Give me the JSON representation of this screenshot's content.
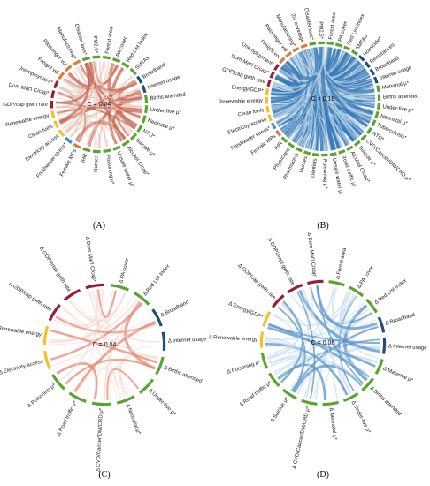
{
  "panels": [
    {
      "id": "A",
      "panel_label": "(A)",
      "center_text": "C = 0.04",
      "link_color": "#c76a55",
      "link_color_light": "#e8c3b8",
      "nodes": [
        {
          "label": "Forest area",
          "color": "#5aa52f"
        },
        {
          "label": "PA cover",
          "color": "#5aa52f"
        },
        {
          "label": "Red List Index",
          "color": "#5aa52f"
        },
        {
          "label": "SMTAs",
          "color": "#5aa52f"
        },
        {
          "label": "Broadband",
          "color": "#1f4e79"
        },
        {
          "label": "Internet usage",
          "color": "#1f4e79"
        },
        {
          "label": "Births attended",
          "color": "#5aa52f"
        },
        {
          "label": "Under-five μ*",
          "color": "#5aa52f"
        },
        {
          "label": "Neonatal μ*",
          "color": "#5aa52f"
        },
        {
          "label": "NTD*",
          "color": "#5aa52f"
        },
        {
          "label": "Suicide μ*",
          "color": "#5aa52f"
        },
        {
          "label": "Alcohol C/cap*",
          "color": "#5aa52f"
        },
        {
          "label": "Unsafe water μ*",
          "color": "#5aa52f"
        },
        {
          "label": "Poisoning μ*",
          "color": "#5aa52f"
        },
        {
          "label": "Nurses",
          "color": "#5aa52f"
        },
        {
          "label": "IHR",
          "color": "#5aa52f"
        },
        {
          "label": "Female MPs",
          "color": "#e07b39"
        },
        {
          "label": "Freshwater stress*",
          "color": "#3b8fc9"
        },
        {
          "label": "Electricity access",
          "color": "#f2c12e"
        },
        {
          "label": "Clean fuels",
          "color": "#f2c12e"
        },
        {
          "label": "Renewable energy",
          "color": "#f2c12e"
        },
        {
          "label": "GDP/cap gwth rate",
          "color": "#9c1c3c"
        },
        {
          "label": "Dom Mat'l C/cap*",
          "color": "#9c1c3c"
        },
        {
          "label": "Unemployment*",
          "color": "#9c1c3c"
        },
        {
          "label": "Freight vol",
          "color": "#e07b39"
        },
        {
          "label": "Passenger vol",
          "color": "#e07b39"
        },
        {
          "label": "Manufacturing*",
          "color": "#e07b39"
        },
        {
          "label": "Disaster loss*",
          "color": "#5aa52f"
        },
        {
          "label": "PM2.5*",
          "color": "#5aa52f"
        }
      ]
    },
    {
      "id": "B",
      "panel_label": "(B)",
      "center_text": "C = 0.18",
      "link_color": "#3a7bb5",
      "link_color_light": "#b9d3ea",
      "nodes": [
        {
          "label": "Forest area",
          "color": "#5aa52f"
        },
        {
          "label": "PA cover",
          "color": "#5aa52f"
        },
        {
          "label": "Red List Index",
          "color": "#5aa52f"
        },
        {
          "label": "SMTAs",
          "color": "#5aa52f"
        },
        {
          "label": "Homicide*",
          "color": "#1f4e79"
        },
        {
          "label": "Remittances",
          "color": "#1f4e79"
        },
        {
          "label": "Broadband",
          "color": "#1f4e79"
        },
        {
          "label": "Internet usage",
          "color": "#1f4e79"
        },
        {
          "label": "Maternal μ*",
          "color": "#5aa52f"
        },
        {
          "label": "Births attended",
          "color": "#5aa52f"
        },
        {
          "label": "Under-five μ*",
          "color": "#5aa52f"
        },
        {
          "label": "Neonatal μ*",
          "color": "#5aa52f"
        },
        {
          "label": "Tuberculosis*",
          "color": "#5aa52f"
        },
        {
          "label": "NTD*",
          "color": "#5aa52f"
        },
        {
          "label": "CVD/Cancer/DM/CRD μ*",
          "color": "#5aa52f"
        },
        {
          "label": "Suicide μ*",
          "color": "#5aa52f"
        },
        {
          "label": "Alcohol C/cap*",
          "color": "#5aa52f"
        },
        {
          "label": "Road traffic μ*",
          "color": "#5aa52f"
        },
        {
          "label": "Unsafe water μ*",
          "color": "#5aa52f"
        },
        {
          "label": "Poisoning μ*",
          "color": "#5aa52f"
        },
        {
          "label": "Dentists",
          "color": "#5aa52f"
        },
        {
          "label": "Nurses",
          "color": "#5aa52f"
        },
        {
          "label": "Pharmacists",
          "color": "#5aa52f"
        },
        {
          "label": "Physicians",
          "color": "#5aa52f"
        },
        {
          "label": "IHR",
          "color": "#5aa52f"
        },
        {
          "label": "Female MPs",
          "color": "#e07b39"
        },
        {
          "label": "Freshwater stress*",
          "color": "#3b8fc9"
        },
        {
          "label": "Electricity access",
          "color": "#f2c12e"
        },
        {
          "label": "Clean fuels",
          "color": "#f2c12e"
        },
        {
          "label": "Renewable energy",
          "color": "#f2c12e"
        },
        {
          "label": "Energy/GDP*",
          "color": "#f2c12e"
        },
        {
          "label": "GDP/cap gwth rate",
          "color": "#9c1c3c"
        },
        {
          "label": "Dom Mat'l C/cap*",
          "color": "#9c1c3c"
        },
        {
          "label": "Unemployment*",
          "color": "#9c1c3c"
        },
        {
          "label": "Freight vol",
          "color": "#e07b39"
        },
        {
          "label": "Passenger vol",
          "color": "#e07b39"
        },
        {
          "label": "Manufacturing*",
          "color": "#e07b39"
        },
        {
          "label": "2G coverage",
          "color": "#e07b39"
        },
        {
          "label": "Disaster loss*",
          "color": "#5aa52f"
        },
        {
          "label": "PM2.5*",
          "color": "#5aa52f"
        }
      ]
    },
    {
      "id": "C",
      "panel_label": "(C)",
      "center_text": "C = 0.04",
      "link_color": "#e58a74",
      "link_color_light": "#f6d2c7",
      "nodes": [
        {
          "label": "Δ PA cover",
          "color": "#5aa52f"
        },
        {
          "label": "Δ Red List Index",
          "color": "#5aa52f"
        },
        {
          "label": "Δ Broadband",
          "color": "#1f4e79"
        },
        {
          "label": "Δ Internet usage",
          "color": "#1f4e79"
        },
        {
          "label": "Δ Births attended",
          "color": "#5aa52f"
        },
        {
          "label": "Δ Under-five μ*",
          "color": "#5aa52f"
        },
        {
          "label": "Δ Neonatal μ*",
          "color": "#5aa52f"
        },
        {
          "label": "Δ CVD/Cancer/DM/CRD μ*",
          "color": "#5aa52f"
        },
        {
          "label": "Δ Road traffic μ*",
          "color": "#5aa52f"
        },
        {
          "label": "Δ Poisoning μ*",
          "color": "#5aa52f"
        },
        {
          "label": "Δ Electricity access",
          "color": "#f2c12e"
        },
        {
          "label": "Δ Renewable energy",
          "color": "#f2c12e"
        },
        {
          "label": "Δ GDP/cap gwth rate",
          "color": "#9c1c3c"
        },
        {
          "label": "Δ GDP/empl gwth rate",
          "color": "#9c1c3c"
        },
        {
          "label": "Δ Dom Mat'l C/cap*",
          "color": "#9c1c3c"
        }
      ]
    },
    {
      "id": "D",
      "panel_label": "(D)",
      "center_text": "C = 0.06",
      "link_color": "#5b95c9",
      "link_color_light": "#c4dbef",
      "nodes": [
        {
          "label": "Δ Forest area",
          "color": "#5aa52f"
        },
        {
          "label": "Δ PA cover",
          "color": "#5aa52f"
        },
        {
          "label": "Δ Red List Index",
          "color": "#5aa52f"
        },
        {
          "label": "Δ Broadband",
          "color": "#1f4e79"
        },
        {
          "label": "Δ Internet usage",
          "color": "#1f4e79"
        },
        {
          "label": "Δ Maternal μ*",
          "color": "#5aa52f"
        },
        {
          "label": "Δ Births attended",
          "color": "#5aa52f"
        },
        {
          "label": "Δ Under-five μ*",
          "color": "#5aa52f"
        },
        {
          "label": "Δ Neonatal μ*",
          "color": "#5aa52f"
        },
        {
          "label": "Δ CVD/Cancer/DM/CRD μ*",
          "color": "#5aa52f"
        },
        {
          "label": "Δ Suicide μ*",
          "color": "#5aa52f"
        },
        {
          "label": "Δ Road traffic μ*",
          "color": "#5aa52f"
        },
        {
          "label": "Δ Poisoning μ*",
          "color": "#5aa52f"
        },
        {
          "label": "Δ Renewable energy",
          "color": "#f2c12e"
        },
        {
          "label": "Δ Energy/GDP*",
          "color": "#f2c12e"
        },
        {
          "label": "Δ GDP/cap gwth rate",
          "color": "#9c1c3c"
        },
        {
          "label": "Δ GDP/empl gwth rate",
          "color": "#9c1c3c"
        },
        {
          "label": "Δ Dom Mat'l C/cap*",
          "color": "#9c1c3c"
        }
      ]
    }
  ]
}
